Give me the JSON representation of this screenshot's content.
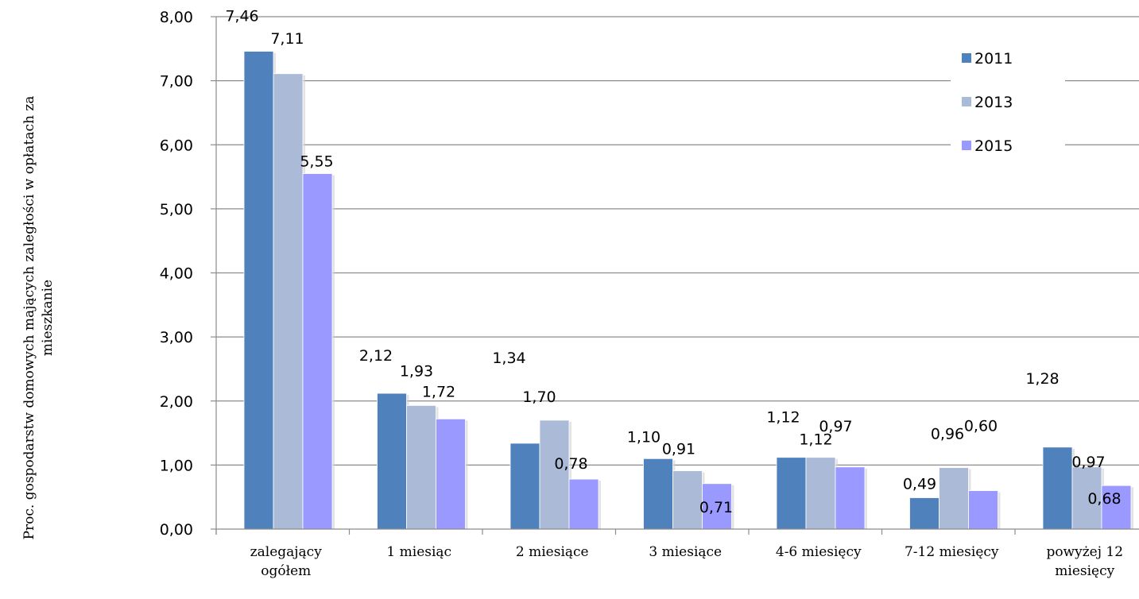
{
  "chart_data": {
    "type": "bar",
    "ylabel_lines": [
      "Proc. gospodarstw domowych mających zaległości w opłatach za",
      "mieszkanie"
    ],
    "xlabel": "",
    "ylim": [
      0,
      8
    ],
    "yticks": [
      "0,00",
      "1,00",
      "2,00",
      "3,00",
      "4,00",
      "5,00",
      "6,00",
      "7,00",
      "8,00"
    ],
    "grid": true,
    "legend_position": "top-right",
    "categories": [
      [
        "zalegający",
        "ogółem"
      ],
      [
        "1 miesiąc"
      ],
      [
        "2 miesiące"
      ],
      [
        "3 miesiące"
      ],
      [
        "4-6 miesięcy"
      ],
      [
        "7-12 miesięcy"
      ],
      [
        "powyżej 12",
        "miesięcy"
      ]
    ],
    "series": [
      {
        "name": "2011",
        "color": "#4f81bd",
        "values": [
          7.46,
          2.12,
          1.34,
          1.1,
          1.12,
          0.49,
          1.28
        ],
        "labels": [
          "7,46",
          "2,12",
          "1,34",
          "1,10",
          "1,12",
          "0,49",
          "1,28"
        ]
      },
      {
        "name": "2013",
        "color": "#aabad7",
        "values": [
          7.11,
          1.93,
          1.7,
          0.91,
          1.12,
          0.96,
          0.97
        ],
        "labels": [
          "7,11",
          "1,93",
          "1,70",
          "0,91",
          "1,12",
          "0,96",
          "0,97"
        ]
      },
      {
        "name": "2015",
        "color": "#9999ff",
        "values": [
          5.55,
          1.72,
          0.78,
          0.71,
          0.97,
          0.6,
          0.68
        ],
        "labels": [
          "5,55",
          "1,72",
          "0,78",
          "0,71",
          "0,97",
          "0,60",
          "0,68"
        ]
      }
    ]
  }
}
